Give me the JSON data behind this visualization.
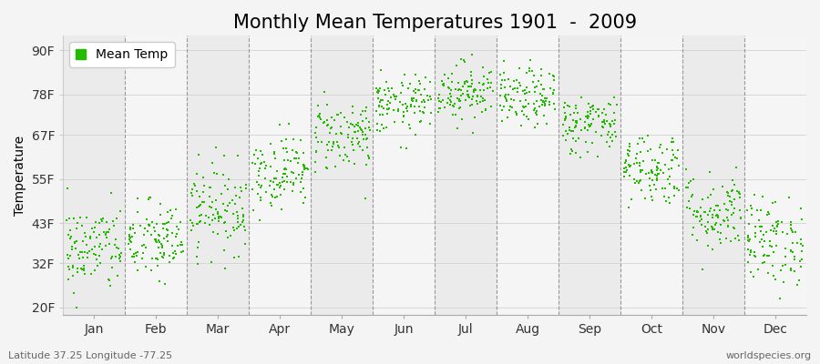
{
  "title": "Monthly Mean Temperatures 1901  -  2009",
  "ylabel": "Temperature",
  "yticks": [
    20,
    32,
    43,
    55,
    67,
    78,
    90
  ],
  "ytick_labels": [
    "20F",
    "32F",
    "43F",
    "55F",
    "67F",
    "78F",
    "90F"
  ],
  "ylim": [
    18,
    94
  ],
  "months": [
    "Jan",
    "Feb",
    "Mar",
    "Apr",
    "May",
    "Jun",
    "Jul",
    "Aug",
    "Sep",
    "Oct",
    "Nov",
    "Dec"
  ],
  "month_means": [
    36,
    38,
    47,
    57,
    67,
    75,
    79,
    77,
    70,
    58,
    46,
    38
  ],
  "month_stds": [
    6,
    5.5,
    6,
    5,
    5,
    4,
    4,
    4,
    4,
    5,
    5.5,
    6
  ],
  "n_years": 109,
  "dot_color": "#22BB00",
  "dot_size": 3,
  "plot_bg": "#FFFFFF",
  "fig_bg": "#F4F4F4",
  "band_colors": [
    "#EBEBEB",
    "#F5F5F5"
  ],
  "legend_label": "Mean Temp",
  "footnote_left": "Latitude 37.25 Longitude -77.25",
  "footnote_right": "worldspecies.org",
  "title_fontsize": 15,
  "axis_fontsize": 10,
  "tick_fontsize": 10,
  "footnote_fontsize": 8
}
